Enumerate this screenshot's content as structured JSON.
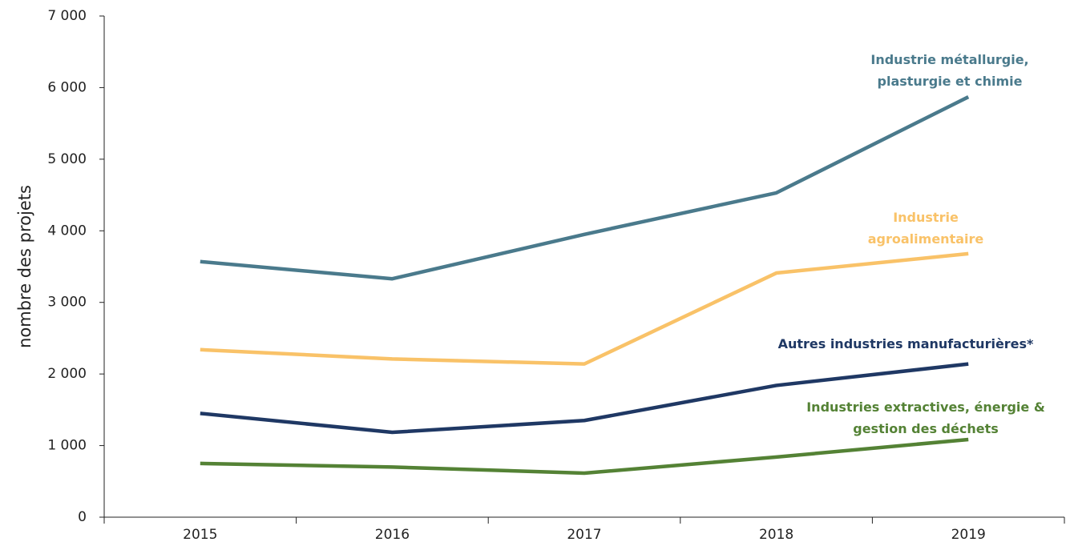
{
  "chart_data": {
    "type": "line",
    "y_label": "nombre des projets",
    "categories": [
      "2015",
      "2016",
      "2017",
      "2018",
      "2019"
    ],
    "series": [
      {
        "label": [
          "Industrie métallurgie,",
          "plasturgie et chimie"
        ],
        "color": "#4a7a8c",
        "values": [
          3570,
          3330,
          3950,
          4530,
          5870
        ]
      },
      {
        "label": [
          "Industrie",
          "agroalimentaire"
        ],
        "color": "#f9c268",
        "values": [
          2340,
          2210,
          2140,
          3410,
          3680
        ]
      },
      {
        "label": [
          "Autres industries manufacturières*"
        ],
        "color": "#1f3864",
        "values": [
          1450,
          1185,
          1350,
          1840,
          2140
        ]
      },
      {
        "label": [
          "Industries extractives, énergie &",
          "gestion des déchets"
        ],
        "color": "#548235",
        "values": [
          750,
          700,
          615,
          840,
          1085
        ]
      }
    ],
    "ylim": [
      0,
      7000
    ],
    "yticks": [
      0,
      {
        "value": 1000,
        "label": "1 000"
      },
      {
        "value": 2000,
        "label": "2 000"
      },
      {
        "value": 3000,
        "label": "3 000"
      },
      {
        "value": 4000,
        "label": "4 000"
      },
      {
        "value": 5000,
        "label": "5 000"
      },
      {
        "value": 6000,
        "label": "6 000"
      },
      {
        "value": 7000,
        "label": "7 000"
      }
    ]
  }
}
